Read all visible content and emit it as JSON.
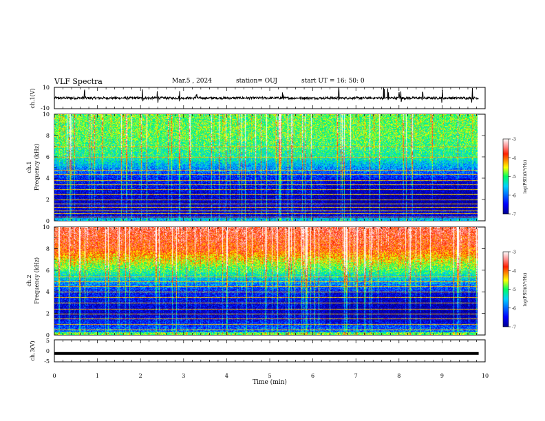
{
  "header": {
    "title": "VLF Spectra",
    "date": "Mar.5 , 2024",
    "station": "station= OUJ",
    "start": "start UT = 16: 50: 0"
  },
  "chart_data": [
    {
      "type": "line",
      "name": "ch1-waveform",
      "ylabel": "ch.1(V)",
      "ylim": [
        -10,
        10
      ],
      "yticks": [
        "10",
        "-10"
      ],
      "xlim": [
        0,
        10
      ],
      "baseline": 0,
      "spike_times_min": [
        0.7,
        2.05,
        2.4,
        2.9,
        3.3,
        5.3,
        6.6,
        7.65,
        7.75,
        8.0,
        8.05,
        8.55,
        9.0,
        9.7
      ]
    },
    {
      "type": "heatmap",
      "name": "ch1-spectrogram",
      "ylabel": "ch.1\nFrequency (kHz)",
      "ylabel_line1": "ch.1",
      "ylabel_line2": "Frequency (kHz)",
      "ylim": [
        0,
        10
      ],
      "yticks": [
        "0",
        "2",
        "4",
        "6",
        "8",
        "10"
      ],
      "xlim": [
        0,
        9.85
      ],
      "colorbar": {
        "label": "log(PSD)(V²/Hz)",
        "range": [
          -7,
          -3
        ],
        "ticks": [
          "-3",
          "-4",
          "-5",
          "-6",
          "-7"
        ]
      },
      "dominant_level_by_freq_kHz": [
        [
          0,
          -6.6
        ],
        [
          2,
          -6.8
        ],
        [
          4,
          -6.4
        ],
        [
          6,
          -5.2
        ],
        [
          8,
          -4.9
        ],
        [
          10,
          -4.9
        ]
      ],
      "horizontal_lines_kHz": [
        0.4,
        0.7,
        1.0,
        1.3,
        1.6,
        2.0,
        2.5,
        3.0,
        3.4,
        3.8,
        4.4,
        4.8,
        6.0,
        7.0
      ],
      "transition_time_min": 6.3
    },
    {
      "type": "heatmap",
      "name": "ch2-spectrogram",
      "ylabel": "ch.2\nFrequency (kHz)",
      "ylabel_line1": "ch.2",
      "ylabel_line2": "Frequency (kHz)",
      "ylim": [
        0,
        10
      ],
      "yticks": [
        "0",
        "2",
        "4",
        "6",
        "8",
        "10"
      ],
      "xlim": [
        0,
        9.85
      ],
      "colorbar": {
        "label": "log(PSD)(V²/Hz)",
        "range": [
          -7,
          -3
        ],
        "ticks": [
          "-3",
          "-4",
          "-5",
          "-6",
          "-7"
        ]
      },
      "dominant_level_by_freq_kHz": [
        [
          0,
          -5.8
        ],
        [
          2,
          -6.8
        ],
        [
          4,
          -6.4
        ],
        [
          6,
          -5.0
        ],
        [
          8,
          -3.9
        ],
        [
          10,
          -3.6
        ]
      ],
      "horizontal_lines_kHz": [
        0.5,
        1.0,
        1.5,
        2.0,
        2.4,
        3.0,
        3.5,
        4.0,
        4.5,
        5.0,
        5.4
      ],
      "transition_time_min": 6.3
    },
    {
      "type": "line",
      "name": "ch3-waveform",
      "ylabel": "ch.3(V)",
      "ylim": [
        -5,
        5
      ],
      "yticks": [
        "5",
        "0",
        "-5"
      ],
      "xlim": [
        0,
        10
      ],
      "value": -1.2
    }
  ],
  "x_axis": {
    "label": "Time (min)",
    "ticks": [
      "0",
      "1",
      "2",
      "3",
      "4",
      "5",
      "6",
      "7",
      "8",
      "9",
      "10"
    ]
  }
}
